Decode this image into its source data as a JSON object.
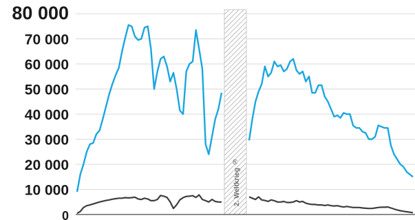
{
  "chart_data": {
    "type": "line",
    "title": "",
    "xlabel": "",
    "ylabel": "",
    "ylim": [
      0,
      80000
    ],
    "grid": true,
    "y_ticks": [
      "0",
      "10 000",
      "20 000",
      "30 000",
      "40 000",
      "50 000",
      "60 000",
      "70 000",
      "80 000"
    ],
    "y_tick_values": [
      0,
      10000,
      20000,
      30000,
      40000,
      50000,
      60000,
      70000,
      80000
    ],
    "colors": {
      "series_1": "#1ba6e0",
      "series_2": "#3d3d3d",
      "gap": "#c8c8c8"
    },
    "gap_annotation": "2. Weltkrieg",
    "gap_note": "(3)",
    "series": [
      {
        "segments": [
          [
            9000,
            16000,
            20000,
            25000,
            28000,
            28500,
            32000,
            33500,
            38000,
            43000,
            48000,
            52000,
            55500,
            58500,
            65000,
            70500,
            75500,
            75000,
            71000,
            69500,
            70000,
            74500,
            75000,
            66000,
            50000,
            57000,
            62000,
            63000,
            59000,
            53000,
            56500,
            50000,
            41500,
            40000,
            57000,
            60000,
            61000,
            73500,
            66000,
            58000,
            28000,
            24000,
            31000,
            38000,
            42000,
            48500
          ],
          [
            29500,
            38000,
            45000,
            49000,
            52000,
            59000,
            55000,
            56500,
            61000,
            59000,
            59500,
            57000,
            58000,
            61000,
            62000,
            57500,
            56000,
            57000,
            53000,
            55000,
            48500,
            48500,
            51500,
            51500,
            47000,
            45000,
            42000,
            39000,
            39500,
            38500,
            40500,
            40000,
            40000,
            35500,
            34500,
            34500,
            33000,
            32500,
            30000,
            30000,
            31000,
            35500,
            35000,
            34500,
            34500,
            27500,
            24000,
            22000,
            20000,
            19000,
            17000,
            16000,
            15000
          ]
        ]
      },
      {
        "segments": [
          [
            500,
            1200,
            2800,
            3500,
            3800,
            4200,
            4600,
            5000,
            5300,
            5600,
            5800,
            6100,
            6300,
            6500,
            6500,
            6700,
            6600,
            6700,
            6900,
            6200,
            6000,
            6500,
            6200,
            5500,
            5500,
            6000,
            7600,
            7300,
            6800,
            5000,
            2400,
            3900,
            5800,
            6700,
            7200,
            7300,
            7500,
            6800,
            7800,
            6000,
            5500,
            5000,
            6000,
            5200,
            5000,
            5000
          ],
          [
            7000,
            6500,
            6000,
            7000,
            5800,
            5600,
            5200,
            5800,
            5500,
            5000,
            5000,
            5200,
            4800,
            4800,
            5000,
            5500,
            5000,
            5200,
            4500,
            4200,
            4000,
            4000,
            3800,
            3800,
            3600,
            3800,
            3500,
            3400,
            3500,
            3200,
            3000,
            3200,
            3000,
            2800,
            2800,
            2800,
            2600,
            2500,
            2400,
            2400,
            2600,
            2800,
            2900,
            2900,
            3000,
            2600,
            2200,
            1800,
            1500,
            1300,
            1100,
            900,
            700
          ]
        ]
      }
    ]
  }
}
